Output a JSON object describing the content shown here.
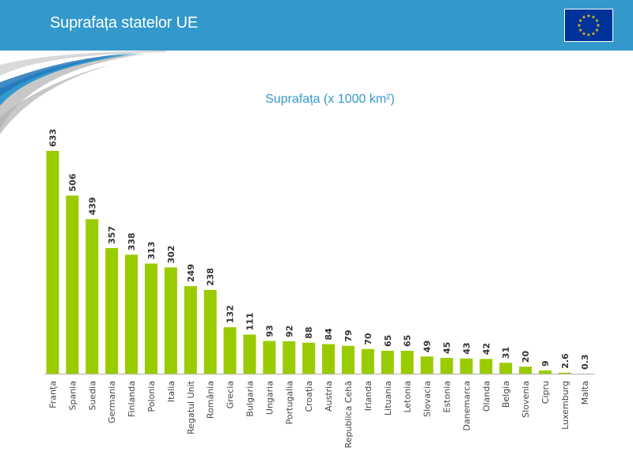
{
  "header": {
    "title": "Suprafața statelor UE",
    "flag_icon": "eu-flag-icon"
  },
  "colors": {
    "header_bg": "#3399cc",
    "bar": "#99cc00",
    "title": "#3399cc",
    "flag": "#003399",
    "star": "#ffcc00"
  },
  "chart_data": {
    "type": "bar",
    "title": "Suprafața (x 1000 km²)",
    "xlabel": "",
    "ylabel": "",
    "ylim": [
      0,
      633
    ],
    "grid": false,
    "legend": "none",
    "categories": [
      "Franța",
      "Spania",
      "Suedia",
      "Germania",
      "Finlanda",
      "Polonia",
      "Italia",
      "Regatul Unit",
      "România",
      "Grecia",
      "Bulgaria",
      "Ungaria",
      "Portugalia",
      "Croația",
      "Austria",
      "Republica Cehă",
      "Irlanda",
      "Lituania",
      "Letonia",
      "Slovacia",
      "Estonia",
      "Danemarca",
      "Olanda",
      "Belgia",
      "Slovenia",
      "Cipru",
      "Luxemburg",
      "Malta"
    ],
    "values": [
      633,
      506,
      439,
      357,
      338,
      313,
      302,
      249,
      238,
      132,
      111,
      93,
      92,
      88,
      84,
      79,
      70,
      65,
      65,
      49,
      45,
      43,
      42,
      31,
      20,
      9,
      2.6,
      0.3
    ],
    "value_labels": [
      "633",
      "506",
      "439",
      "357",
      "338",
      "313",
      "302",
      "249",
      "238",
      "132",
      "111",
      "93",
      "92",
      "88",
      "84",
      "79",
      "70",
      "65",
      "65",
      "49",
      "45",
      "43",
      "42",
      "31",
      "20",
      "9",
      "2.6",
      "0.3"
    ]
  }
}
